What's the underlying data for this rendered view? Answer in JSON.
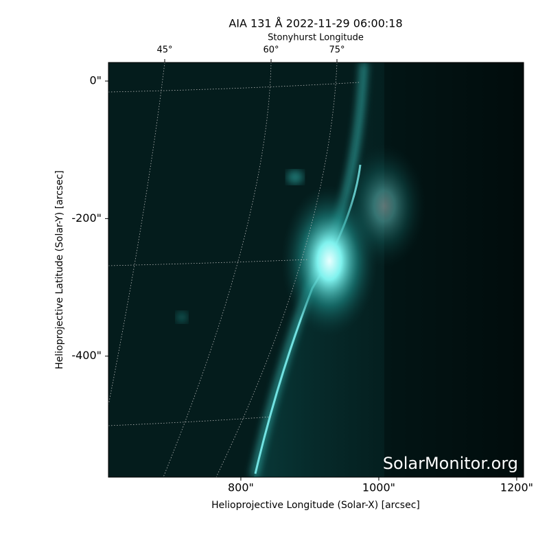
{
  "chart_data": {
    "type": "image",
    "title": "AIA 131 Å 2022-11-29 06:00:18",
    "x_label": "Helioprojective Longitude (Solar-X) [arcsec]",
    "y_label": "Helioprojective Latitude (Solar-Y) [arcsec]",
    "top_axis_label": "Stonyhurst Longitude",
    "top_ticks": [
      {
        "value": 45,
        "label": "45°"
      },
      {
        "value": 60,
        "label": "60°"
      },
      {
        "value": 75,
        "label": "75°"
      }
    ],
    "xlim": [
      608,
      1210
    ],
    "ylim": [
      -576,
      27
    ],
    "xticks": [
      {
        "value": 800,
        "label": "800\""
      },
      {
        "value": 1000,
        "label": "1000\""
      },
      {
        "value": 1200,
        "label": "1200\""
      }
    ],
    "yticks": [
      {
        "value": 0,
        "label": "0\""
      },
      {
        "value": -200,
        "label": "-200\""
      },
      {
        "value": -400,
        "label": "-400\""
      }
    ],
    "watermark": "SolarMonitor.org"
  }
}
